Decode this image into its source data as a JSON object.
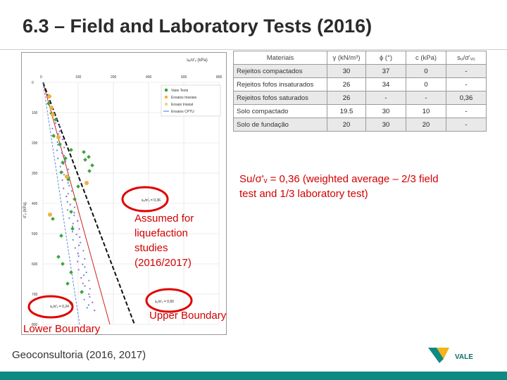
{
  "slide": {
    "title": "6.3 – Field and Laboratory Tests (2016)",
    "source": "Geoconsultoria (2016, 2017)",
    "logo_text": "VALE"
  },
  "plot": {
    "top_axis_label": "sᵤ/σ'ᵥ (kPa)",
    "x_ticks": [
      "0",
      "100",
      "200",
      "400",
      "600",
      "800"
    ],
    "y_ticks": [
      "0",
      "100",
      "200",
      "300",
      "400",
      "500",
      "600",
      "700",
      "800"
    ],
    "y_axis_label": "σ'ᵥ (kPa)",
    "legend": [
      "Vane Tests",
      "Ensaios triaxiais",
      "Ensaio triaxial",
      "Ensaios CPTU"
    ],
    "colors": {
      "vane": "#3aa63a",
      "triax": "#f0b040",
      "cptu": "#5b8dd6",
      "lower": "#cc2222",
      "upper": "#111111"
    },
    "line_labels": {
      "middle": "sᵤ/σ'ᵥ = 0,36",
      "lower": "sᵤ/σ'ᵥ = 0,24",
      "upper": "sᵤ/σ'ᵥ = 0,60"
    }
  },
  "table": {
    "headers": [
      "Materiais",
      "γ (kN/m³)",
      "ϕ (°)",
      "c (kPa)",
      "sᵤ/σ'ᵥ₀"
    ],
    "rows": [
      {
        "name": "Rejeitos compactados",
        "gamma": "30",
        "phi": "37",
        "c": "0",
        "su": "-",
        "shade": true
      },
      {
        "name": "Rejeitos fofos insaturados",
        "gamma": "26",
        "phi": "34",
        "c": "0",
        "su": "-",
        "shade": false
      },
      {
        "name": "Rejeitos fofos saturados",
        "gamma": "26",
        "phi": "-",
        "c": "-",
        "su": "0,36",
        "shade": true
      },
      {
        "name": "Solo compactado",
        "gamma": "19.5",
        "phi": "30",
        "c": "10",
        "su": "-",
        "shade": false
      },
      {
        "name": "Solo de fundação",
        "gamma": "20",
        "phi": "30",
        "c": "20",
        "su": "-",
        "shade": true
      }
    ]
  },
  "annotations": {
    "weighted": "Su/σ'ᵥ = 0,36 (weighted average – 2/3 field test and 1/3 laboratory test)",
    "assumed": "Assumed for liquefaction studies (2016/2017)",
    "lower_boundary": "Lower Boundary",
    "upper_boundary": "Upper Boundary"
  }
}
